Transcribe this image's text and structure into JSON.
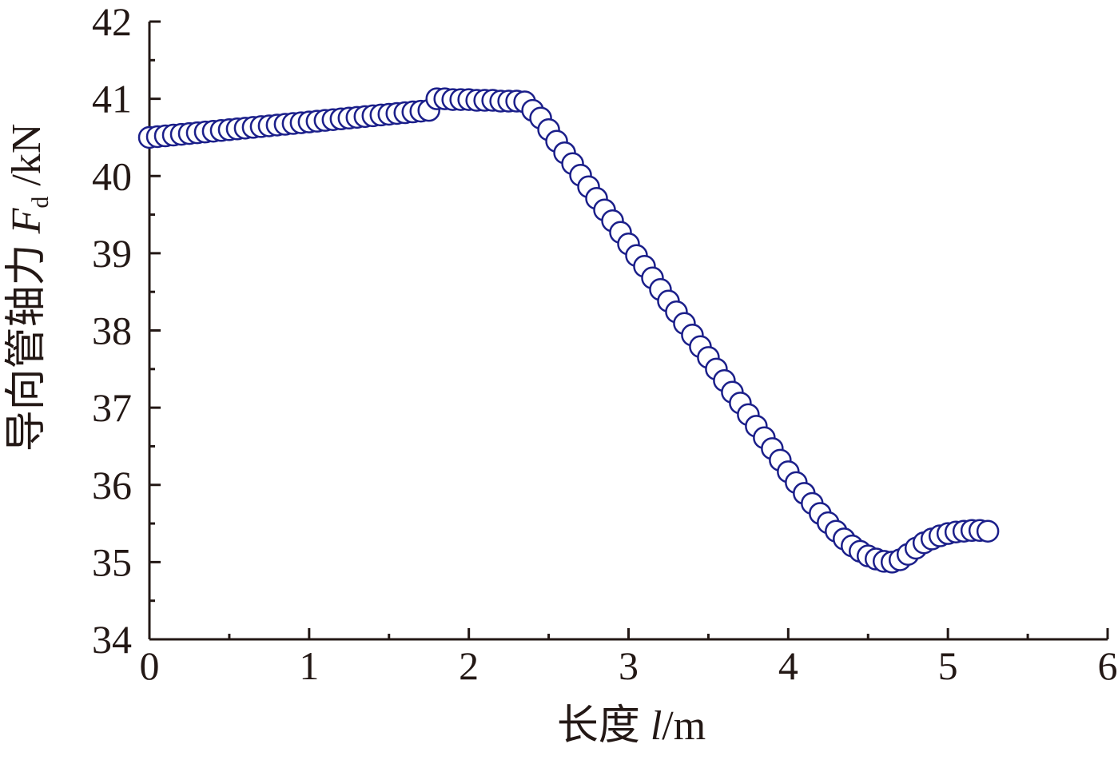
{
  "chart_data": {
    "type": "scatter",
    "xlabel": [
      "长度 ",
      "l",
      "/m"
    ],
    "ylabel": [
      "导向管轴力 ",
      "F",
      "d",
      " /kN"
    ],
    "xlim": [
      0,
      6
    ],
    "ylim": [
      34,
      42
    ],
    "xticks": [
      0,
      1,
      2,
      3,
      4,
      5,
      6
    ],
    "yticks": [
      34,
      35,
      36,
      37,
      38,
      39,
      40,
      41,
      42
    ],
    "xminorticks": [
      0.5,
      1.5,
      2.5,
      3.5,
      4.5,
      5.5
    ],
    "yminorticks": [
      34.5,
      35.5,
      36.5,
      37.5,
      38.5,
      39.5,
      40.5,
      41.5
    ],
    "marker_color": "#1b1f8a",
    "x": [
      0,
      0.05,
      0.1,
      0.15,
      0.2,
      0.25,
      0.3,
      0.35,
      0.4,
      0.45,
      0.5,
      0.55,
      0.6,
      0.65,
      0.7,
      0.75,
      0.8,
      0.85,
      0.9,
      0.95,
      1,
      1.05,
      1.1,
      1.15,
      1.2,
      1.25,
      1.3,
      1.35,
      1.4,
      1.45,
      1.5,
      1.55,
      1.6,
      1.65,
      1.7,
      1.75,
      1.8,
      1.85,
      1.9,
      1.95,
      2,
      2.05,
      2.1,
      2.15,
      2.2,
      2.25,
      2.3,
      2.35,
      2.4,
      2.45,
      2.5,
      2.55,
      2.6,
      2.65,
      2.7,
      2.75,
      2.8,
      2.85,
      2.9,
      2.95,
      3,
      3.05,
      3.1,
      3.15,
      3.2,
      3.25,
      3.3,
      3.35,
      3.4,
      3.45,
      3.5,
      3.55,
      3.6,
      3.65,
      3.7,
      3.75,
      3.8,
      3.85,
      3.9,
      3.95,
      4,
      4.05,
      4.1,
      4.15,
      4.2,
      4.25,
      4.3,
      4.35,
      4.4,
      4.45,
      4.5,
      4.55,
      4.6,
      4.65,
      4.7,
      4.75,
      4.8,
      4.85,
      4.9,
      4.95,
      5,
      5.05,
      5.1,
      5.15,
      5.2,
      5.25
    ],
    "values": [
      40.5,
      40.51,
      40.52,
      40.53,
      40.54,
      40.55,
      40.56,
      40.57,
      40.58,
      40.59,
      40.6,
      40.61,
      40.62,
      40.63,
      40.64,
      40.65,
      40.66,
      40.67,
      40.68,
      40.69,
      40.7,
      40.71,
      40.72,
      40.73,
      40.74,
      40.75,
      40.76,
      40.77,
      40.78,
      40.79,
      40.8,
      40.81,
      40.82,
      40.83,
      40.84,
      40.85,
      41,
      41,
      40.99,
      40.99,
      40.99,
      40.98,
      40.98,
      40.98,
      40.97,
      40.97,
      40.97,
      40.96,
      40.85,
      40.75,
      40.6,
      40.45,
      40.3,
      40.16,
      40.01,
      39.86,
      39.71,
      39.56,
      39.42,
      39.27,
      39.12,
      38.97,
      38.83,
      38.68,
      38.53,
      38.38,
      38.24,
      38.09,
      37.94,
      37.79,
      37.65,
      37.5,
      37.35,
      37.2,
      37.06,
      36.91,
      36.76,
      36.61,
      36.47,
      36.32,
      36.17,
      36.03,
      35.89,
      35.76,
      35.63,
      35.51,
      35.4,
      35.3,
      35.21,
      35.14,
      35.08,
      35.04,
      35.01,
      35,
      35.03,
      35.1,
      35.18,
      35.25,
      35.3,
      35.34,
      35.37,
      35.39,
      35.4,
      35.41,
      35.41,
      35.4
    ]
  }
}
